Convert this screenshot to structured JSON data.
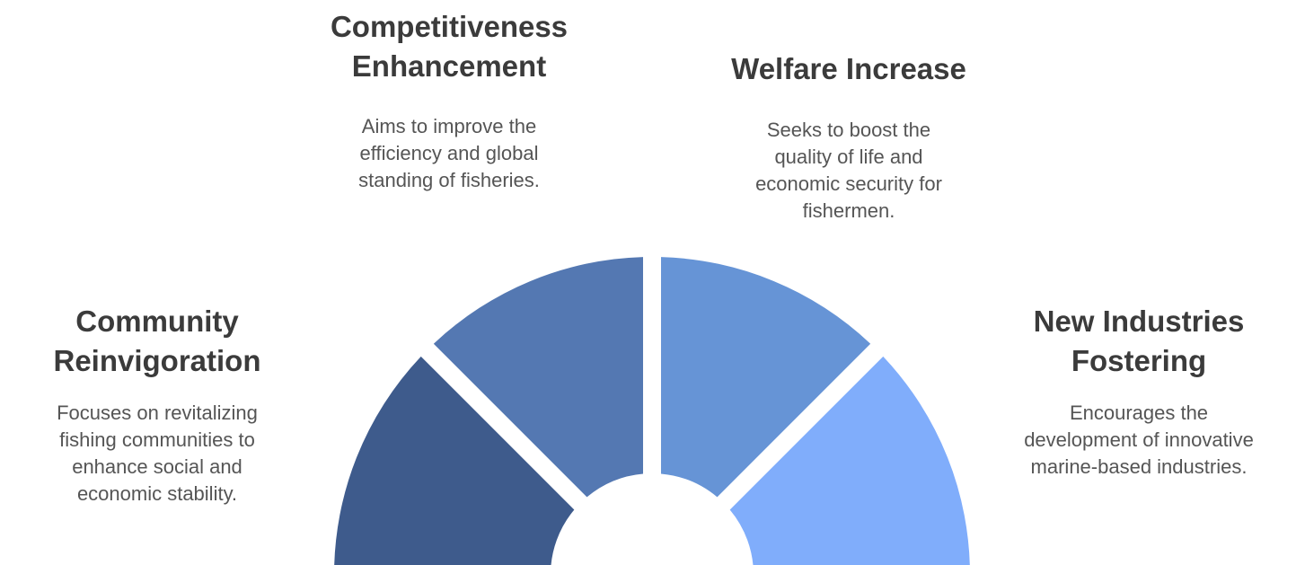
{
  "segments": [
    {
      "id": "community",
      "title": "Community\nReinvigoration",
      "description": "Focuses on revitalizing\nfishing communities to\nenhance social and\neconomic stability.",
      "color": "#3e5b8c"
    },
    {
      "id": "competitiveness",
      "title": "Competitiveness\nEnhancement",
      "description": "Aims to improve the\nefficiency and global\nstanding of fisheries.",
      "color": "#5478b2"
    },
    {
      "id": "welfare",
      "title": "Welfare Increase",
      "description": "Seeks to boost the\nquality of life and\neconomic security for\nfishermen.",
      "color": "#6694d6"
    },
    {
      "id": "industries",
      "title": "New Industries\nFostering",
      "description": "Encourages the\ndevelopment of innovative\nmarine-based industries.",
      "color": "#80adfb"
    }
  ]
}
